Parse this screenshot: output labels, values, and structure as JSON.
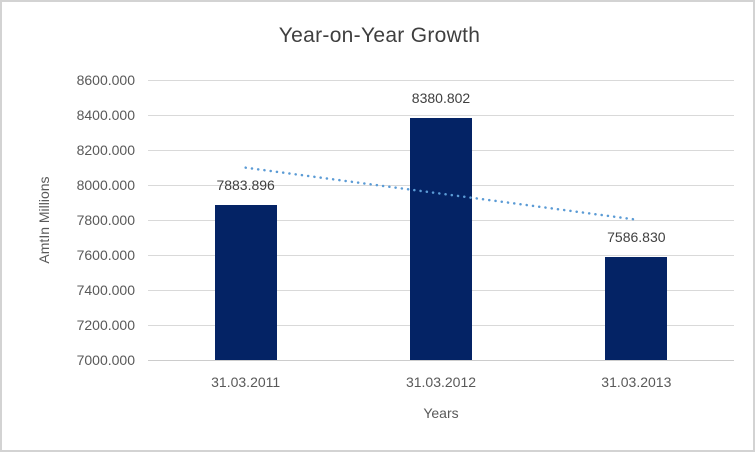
{
  "window": {
    "background": "#ffffff",
    "border_color": "#d3d3d3"
  },
  "chart_data": {
    "type": "bar",
    "title": "Year-on-Year Growth",
    "xlabel": "Years",
    "ylabel": "AmtIn Millions",
    "categories": [
      "31.03.2011",
      "31.03.2012",
      "31.03.2013"
    ],
    "values": [
      7883.896,
      8380.802,
      7586.83
    ],
    "data_labels": [
      "7883.896",
      "8380.802",
      "7586.830"
    ],
    "ylim": [
      7000,
      8600
    ],
    "ytick_step": 200,
    "ytick_labels": [
      "7000.000",
      "7200.000",
      "7400.000",
      "7600.000",
      "7800.000",
      "8000.000",
      "8200.000",
      "8400.000",
      "8600.000"
    ],
    "grid": true,
    "legend": false,
    "trendline": {
      "style": "dotted",
      "type": "linear",
      "start_value": 8099,
      "end_value": 7802
    },
    "colors": {
      "bar": "#042365",
      "trendline": "#5b9bd5",
      "gridline": "#d9d9d9",
      "axis_line": "#cccccc",
      "title_text": "#3f3f3f",
      "tick_text": "#595959",
      "data_label_text": "#404040"
    }
  }
}
